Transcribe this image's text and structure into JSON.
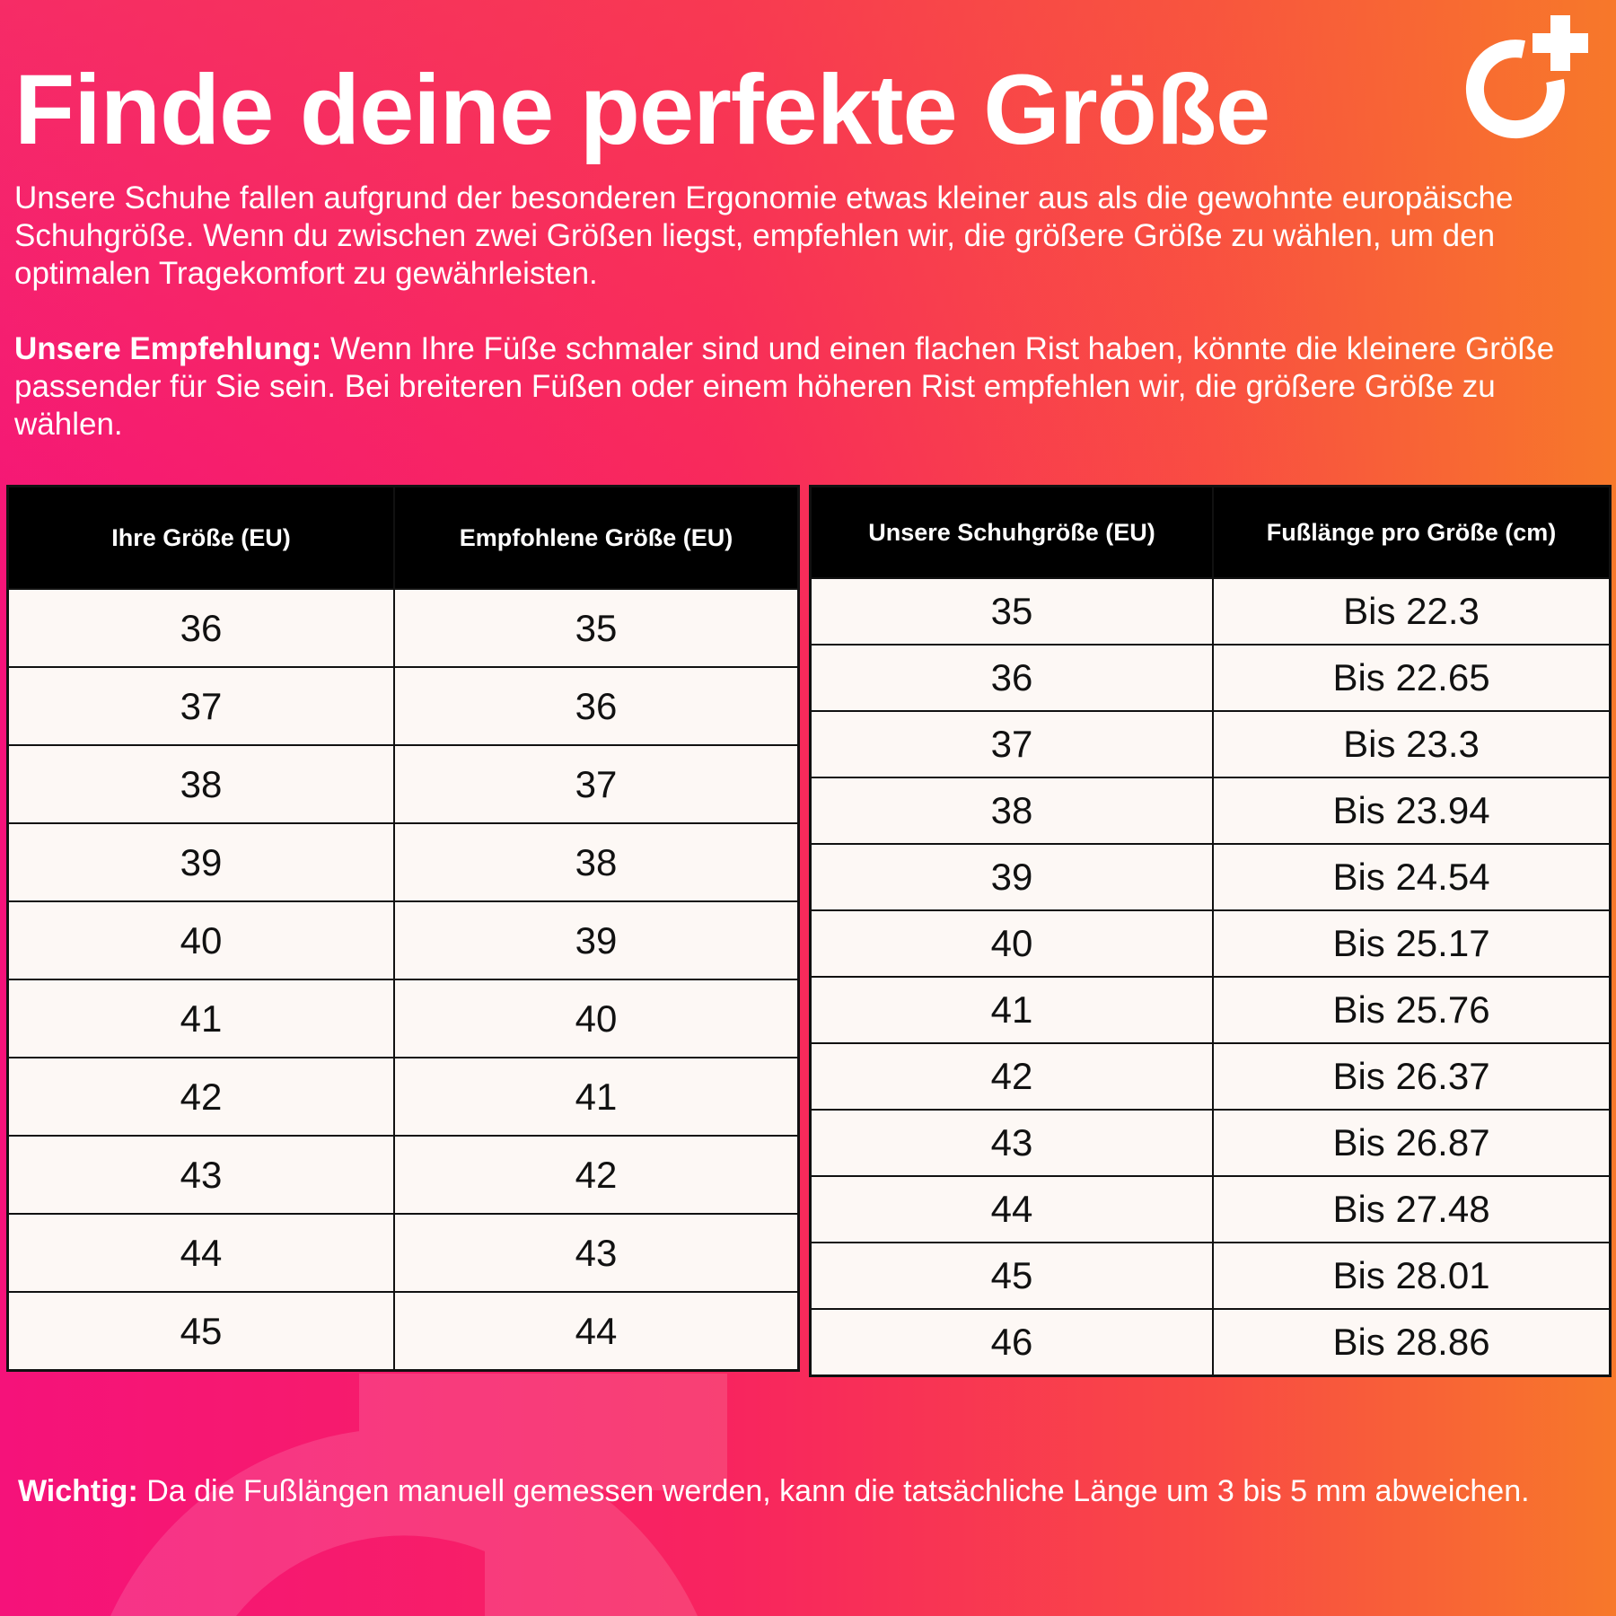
{
  "title": "Finde deine perfekte Größe",
  "intro": "Unsere Schuhe fallen aufgrund der besonderen Ergonomie etwas kleiner aus als die gewohnte europäische Schuhgröße. Wenn du zwischen zwei Größen liegst, empfehlen wir, die größere Größe zu wählen, um den optimalen Tragekomfort zu gewährleisten.",
  "recommendation": {
    "label": "Unsere Empfehlung:",
    "text": " Wenn Ihre Füße schmaler sind und einen flachen Rist haben, könnte die kleinere Größe passender für Sie sein. Bei breiteren Füßen oder einem höheren Rist empfehlen wir, die größere Größe zu wählen."
  },
  "logo_icon": "circle-plus-logo",
  "colors": {
    "gradient_left": "#f5127a",
    "gradient_right": "#f7782a",
    "header_bg": "#000000",
    "cell_bg": "#fdf8f5"
  },
  "table_conversion": {
    "headers": [
      "Ihre Größe (EU)",
      "Empfohlene Größe (EU)"
    ],
    "rows": [
      [
        "36",
        "35"
      ],
      [
        "37",
        "36"
      ],
      [
        "38",
        "37"
      ],
      [
        "39",
        "38"
      ],
      [
        "40",
        "39"
      ],
      [
        "41",
        "40"
      ],
      [
        "42",
        "41"
      ],
      [
        "43",
        "42"
      ],
      [
        "44",
        "43"
      ],
      [
        "45",
        "44"
      ]
    ]
  },
  "table_length": {
    "headers": [
      "Unsere Schuhgröße (EU)",
      "Fußlänge pro Größe (cm)"
    ],
    "rows": [
      [
        "35",
        "Bis 22.3"
      ],
      [
        "36",
        "Bis 22.65"
      ],
      [
        "37",
        "Bis 23.3"
      ],
      [
        "38",
        "Bis 23.94"
      ],
      [
        "39",
        "Bis 24.54"
      ],
      [
        "40",
        "Bis 25.17"
      ],
      [
        "41",
        "Bis 25.76"
      ],
      [
        "42",
        "Bis 26.37"
      ],
      [
        "43",
        "Bis 26.87"
      ],
      [
        "44",
        "Bis 27.48"
      ],
      [
        "45",
        "Bis 28.01"
      ],
      [
        "46",
        "Bis 28.86"
      ]
    ]
  },
  "footer": {
    "label": "Wichtig:",
    "text": " Da die Fußlängen manuell gemessen werden, kann die tatsächliche Länge um 3 bis 5 mm abweichen."
  }
}
